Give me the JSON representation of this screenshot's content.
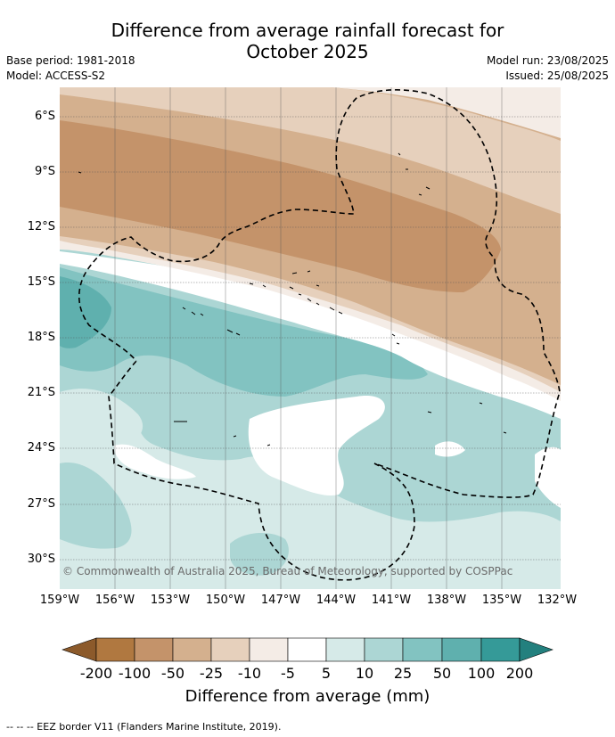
{
  "header": {
    "title_line1": "Difference from average rainfall forecast for",
    "title_line2": "October 2025",
    "base_period": "Base period: 1981-2018",
    "model": "Model: ACCESS-S2",
    "model_run": "Model run: 23/08/2025",
    "issued": "Issued: 25/08/2025"
  },
  "map": {
    "lat_labels": [
      "6°S",
      "9°S",
      "12°S",
      "15°S",
      "18°S",
      "21°S",
      "24°S",
      "27°S",
      "30°S"
    ],
    "lon_labels": [
      "159°W",
      "156°W",
      "153°W",
      "150°W",
      "147°W",
      "144°W",
      "141°W",
      "138°W",
      "135°W",
      "132°W"
    ],
    "copyright": "© Commonwealth of Australia 2025, Bureau of Meteorology, supported by COSPPac"
  },
  "colorbar": {
    "ticks": [
      "-200",
      "-100",
      "-50",
      "-25",
      "-10",
      "-5",
      "5",
      "10",
      "25",
      "50",
      "100",
      "200"
    ],
    "colors": [
      "#8c5a2b",
      "#b07840",
      "#c4936a",
      "#d4b08e",
      "#e6d0bc",
      "#f4ece6",
      "#ffffff",
      "#d6eae8",
      "#acd6d4",
      "#82c3c1",
      "#5fb0ae",
      "#359a98",
      "#23807e"
    ],
    "title": "Difference from average (mm)"
  },
  "footnote": "-- -- -- EEZ border V11 (Flanders Marine Institute, 2019)."
}
